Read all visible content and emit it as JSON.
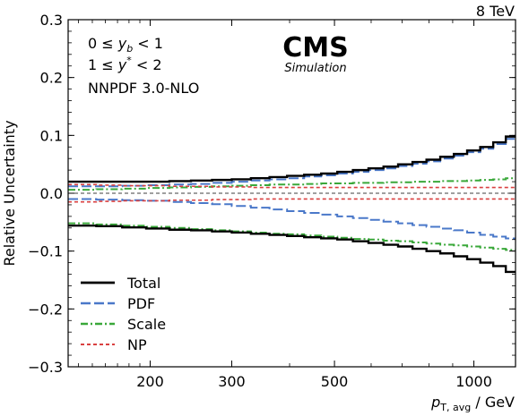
{
  "chart_data": {
    "type": "line",
    "energy_label": "8 TeV",
    "experiment": "CMS",
    "experiment_sub": "Simulation",
    "annotations": [
      "0 ≤ y_b < 1",
      "1 ≤ y* < 2",
      "NNPDF 3.0-NLO"
    ],
    "xlabel": "p_T,avg / GeV",
    "ylabel": "Relative Uncertainty",
    "xscale": "log",
    "xlim": [
      133,
      1230
    ],
    "ylim": [
      -0.3,
      0.3
    ],
    "x_ticks": [
      200,
      300,
      500,
      1000
    ],
    "y_ticks": [
      "0.3",
      "0.2",
      "0.1",
      "0.0",
      "−0.1",
      "−0.2",
      "−0.3"
    ],
    "y_tick_values": [
      0.3,
      0.2,
      0.1,
      0.0,
      -0.1,
      -0.2,
      -0.3
    ],
    "legend_position": "bottom-left",
    "bin_edges": [
      133,
      153,
      174,
      196,
      220,
      245,
      272,
      300,
      330,
      362,
      395,
      430,
      468,
      507,
      548,
      592,
      638,
      686,
      737,
      790,
      846,
      905,
      967,
      1032,
      1101,
      1172,
      1230
    ],
    "series": [
      {
        "name": "Total",
        "color": "#000000",
        "dash": "solid",
        "upper": [
          0.02,
          0.02,
          0.02,
          0.02,
          0.021,
          0.022,
          0.023,
          0.024,
          0.026,
          0.028,
          0.03,
          0.032,
          0.034,
          0.037,
          0.04,
          0.043,
          0.046,
          0.05,
          0.054,
          0.058,
          0.063,
          0.068,
          0.074,
          0.08,
          0.088,
          0.098
        ],
        "lower": [
          -0.056,
          -0.057,
          -0.059,
          -0.061,
          -0.063,
          -0.064,
          -0.066,
          -0.068,
          -0.07,
          -0.072,
          -0.074,
          -0.076,
          -0.078,
          -0.08,
          -0.083,
          -0.086,
          -0.089,
          -0.092,
          -0.096,
          -0.1,
          -0.104,
          -0.109,
          -0.114,
          -0.12,
          -0.126,
          -0.136
        ]
      },
      {
        "name": "PDF",
        "color": "#4a78c9",
        "dash": "long-dash",
        "upper": [
          0.012,
          0.012,
          0.013,
          0.014,
          0.015,
          0.016,
          0.018,
          0.02,
          0.022,
          0.024,
          0.026,
          0.029,
          0.031,
          0.034,
          0.037,
          0.04,
          0.043,
          0.047,
          0.051,
          0.055,
          0.06,
          0.065,
          0.071,
          0.077,
          0.085,
          0.094
        ],
        "lower": [
          -0.01,
          -0.011,
          -0.012,
          -0.013,
          -0.015,
          -0.017,
          -0.019,
          -0.022,
          -0.025,
          -0.028,
          -0.031,
          -0.034,
          -0.037,
          -0.04,
          -0.043,
          -0.046,
          -0.049,
          -0.052,
          -0.055,
          -0.058,
          -0.061,
          -0.064,
          -0.068,
          -0.072,
          -0.075,
          -0.078
        ]
      },
      {
        "name": "Scale",
        "color": "#3aa83a",
        "dash": "dash-dot",
        "upper": [
          0.006,
          0.007,
          0.008,
          0.009,
          0.01,
          0.011,
          0.012,
          0.013,
          0.014,
          0.015,
          0.015,
          0.016,
          0.017,
          0.017,
          0.018,
          0.018,
          0.019,
          0.019,
          0.02,
          0.02,
          0.021,
          0.021,
          0.022,
          0.023,
          0.024,
          0.026
        ],
        "lower": [
          -0.052,
          -0.054,
          -0.056,
          -0.058,
          -0.06,
          -0.062,
          -0.064,
          -0.066,
          -0.068,
          -0.07,
          -0.071,
          -0.073,
          -0.075,
          -0.077,
          -0.079,
          -0.08,
          -0.082,
          -0.083,
          -0.085,
          -0.087,
          -0.089,
          -0.09,
          -0.092,
          -0.094,
          -0.096,
          -0.098
        ]
      },
      {
        "name": "NP",
        "color": "#d94040",
        "dash": "short-dash",
        "upper": [
          0.015,
          0.014,
          0.013,
          0.013,
          0.012,
          0.012,
          0.011,
          0.011,
          0.01,
          0.01,
          0.01,
          0.01,
          0.01,
          0.01,
          0.01,
          0.01,
          0.01,
          0.01,
          0.01,
          0.01,
          0.01,
          0.01,
          0.01,
          0.01,
          0.01,
          0.01
        ],
        "lower": [
          -0.015,
          -0.014,
          -0.013,
          -0.013,
          -0.012,
          -0.012,
          -0.011,
          -0.011,
          -0.01,
          -0.01,
          -0.01,
          -0.01,
          -0.01,
          -0.01,
          -0.01,
          -0.01,
          -0.01,
          -0.01,
          -0.01,
          -0.01,
          -0.01,
          -0.01,
          -0.01,
          -0.01,
          -0.01,
          -0.01
        ]
      }
    ]
  }
}
